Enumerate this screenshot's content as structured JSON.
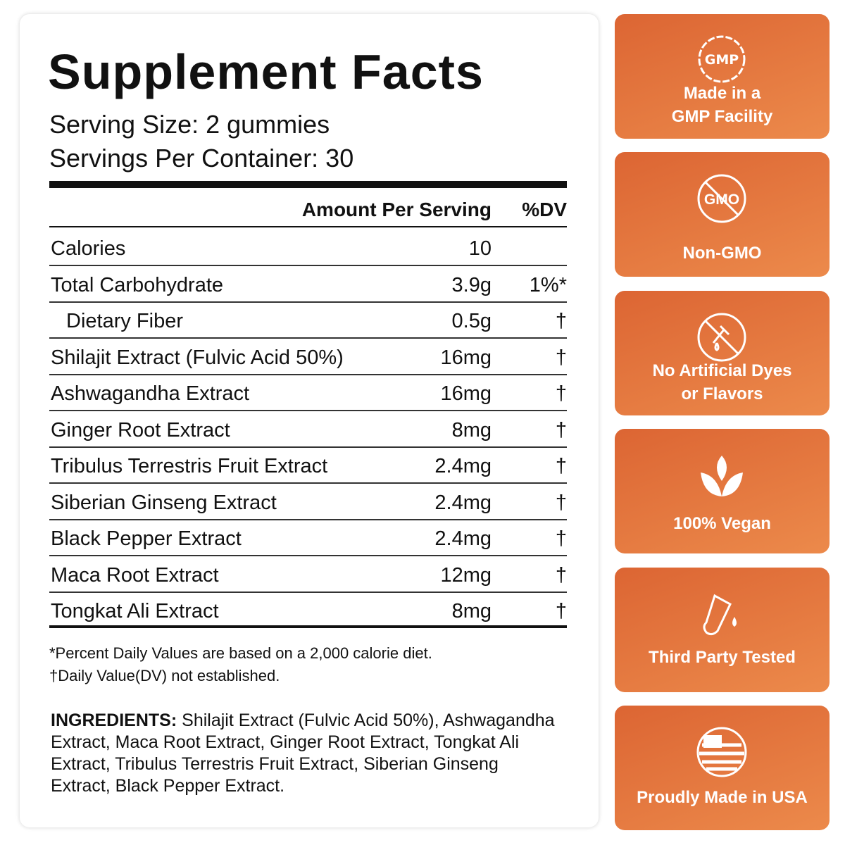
{
  "title": "Supplement Facts",
  "serving_size": "Serving Size: 2 gummies",
  "servings_per_container": "Servings Per Container: 30",
  "table": {
    "header": [
      "Amount Per Serving",
      "%DV"
    ],
    "rows": [
      {
        "name": "Calories",
        "amount": "10"
      },
      {
        "name": "Total Carbohydrate",
        "amount": "3.9g",
        "dv": "1%*"
      },
      {
        "name": "Dietary Fiber",
        "amount": "0.5g",
        "dv": "†",
        "indent": true
      },
      {
        "name": "Shilajit Extract (Fulvic Acid 50%)",
        "amount": "16mg",
        "dv": "†"
      },
      {
        "name": "Ashwagandha Extract",
        "amount": "16mg",
        "dv": "†"
      },
      {
        "name": "Ginger Root Extract",
        "amount": "8mg",
        "dv": "†"
      },
      {
        "name": "Tribulus Terrestris Fruit Extract",
        "amount": "2.4mg",
        "dv": "†"
      },
      {
        "name": "Siberian Ginseng Extract",
        "amount": "2.4mg",
        "dv": "†"
      },
      {
        "name": "Black Pepper Extract",
        "amount": "2.4mg",
        "dv": "†"
      },
      {
        "name": "Maca Root Extract",
        "amount": "12mg",
        "dv": "†"
      },
      {
        "name": "Tongkat Ali Extract",
        "amount": "8mg",
        "dv": "†"
      }
    ]
  },
  "footnotes": [
    "*Percent Daily Values are based on a 2,000 calorie diet.",
    "†Daily Value(DV) not established."
  ],
  "ingredients": {
    "label": "INGREDIENTS:",
    "text": "Shilajit Extract (Fulvic Acid 50%), Ashwagandha Extract, Maca Root Extract, Ginger Root Extract, Tongkat Ali Extract, Tribulus Terrestris Fruit Extract, Siberian Ginseng Extract, Black Pepper Extract."
  },
  "badges": [
    {
      "icon_text": "GMP",
      "label_lines": [
        "Made in a",
        "GMP Facility"
      ]
    },
    {
      "icon_text": "GMO",
      "label_lines": [
        "Non-GMO"
      ]
    },
    {
      "label_lines": [
        "No Artificial Dyes",
        "or Flavors"
      ]
    },
    {
      "label_lines": [
        "100% Vegan"
      ]
    },
    {
      "label_lines": [
        "Third Party Tested"
      ]
    },
    {
      "label_lines": [
        "Proudly Made in USA"
      ]
    }
  ]
}
